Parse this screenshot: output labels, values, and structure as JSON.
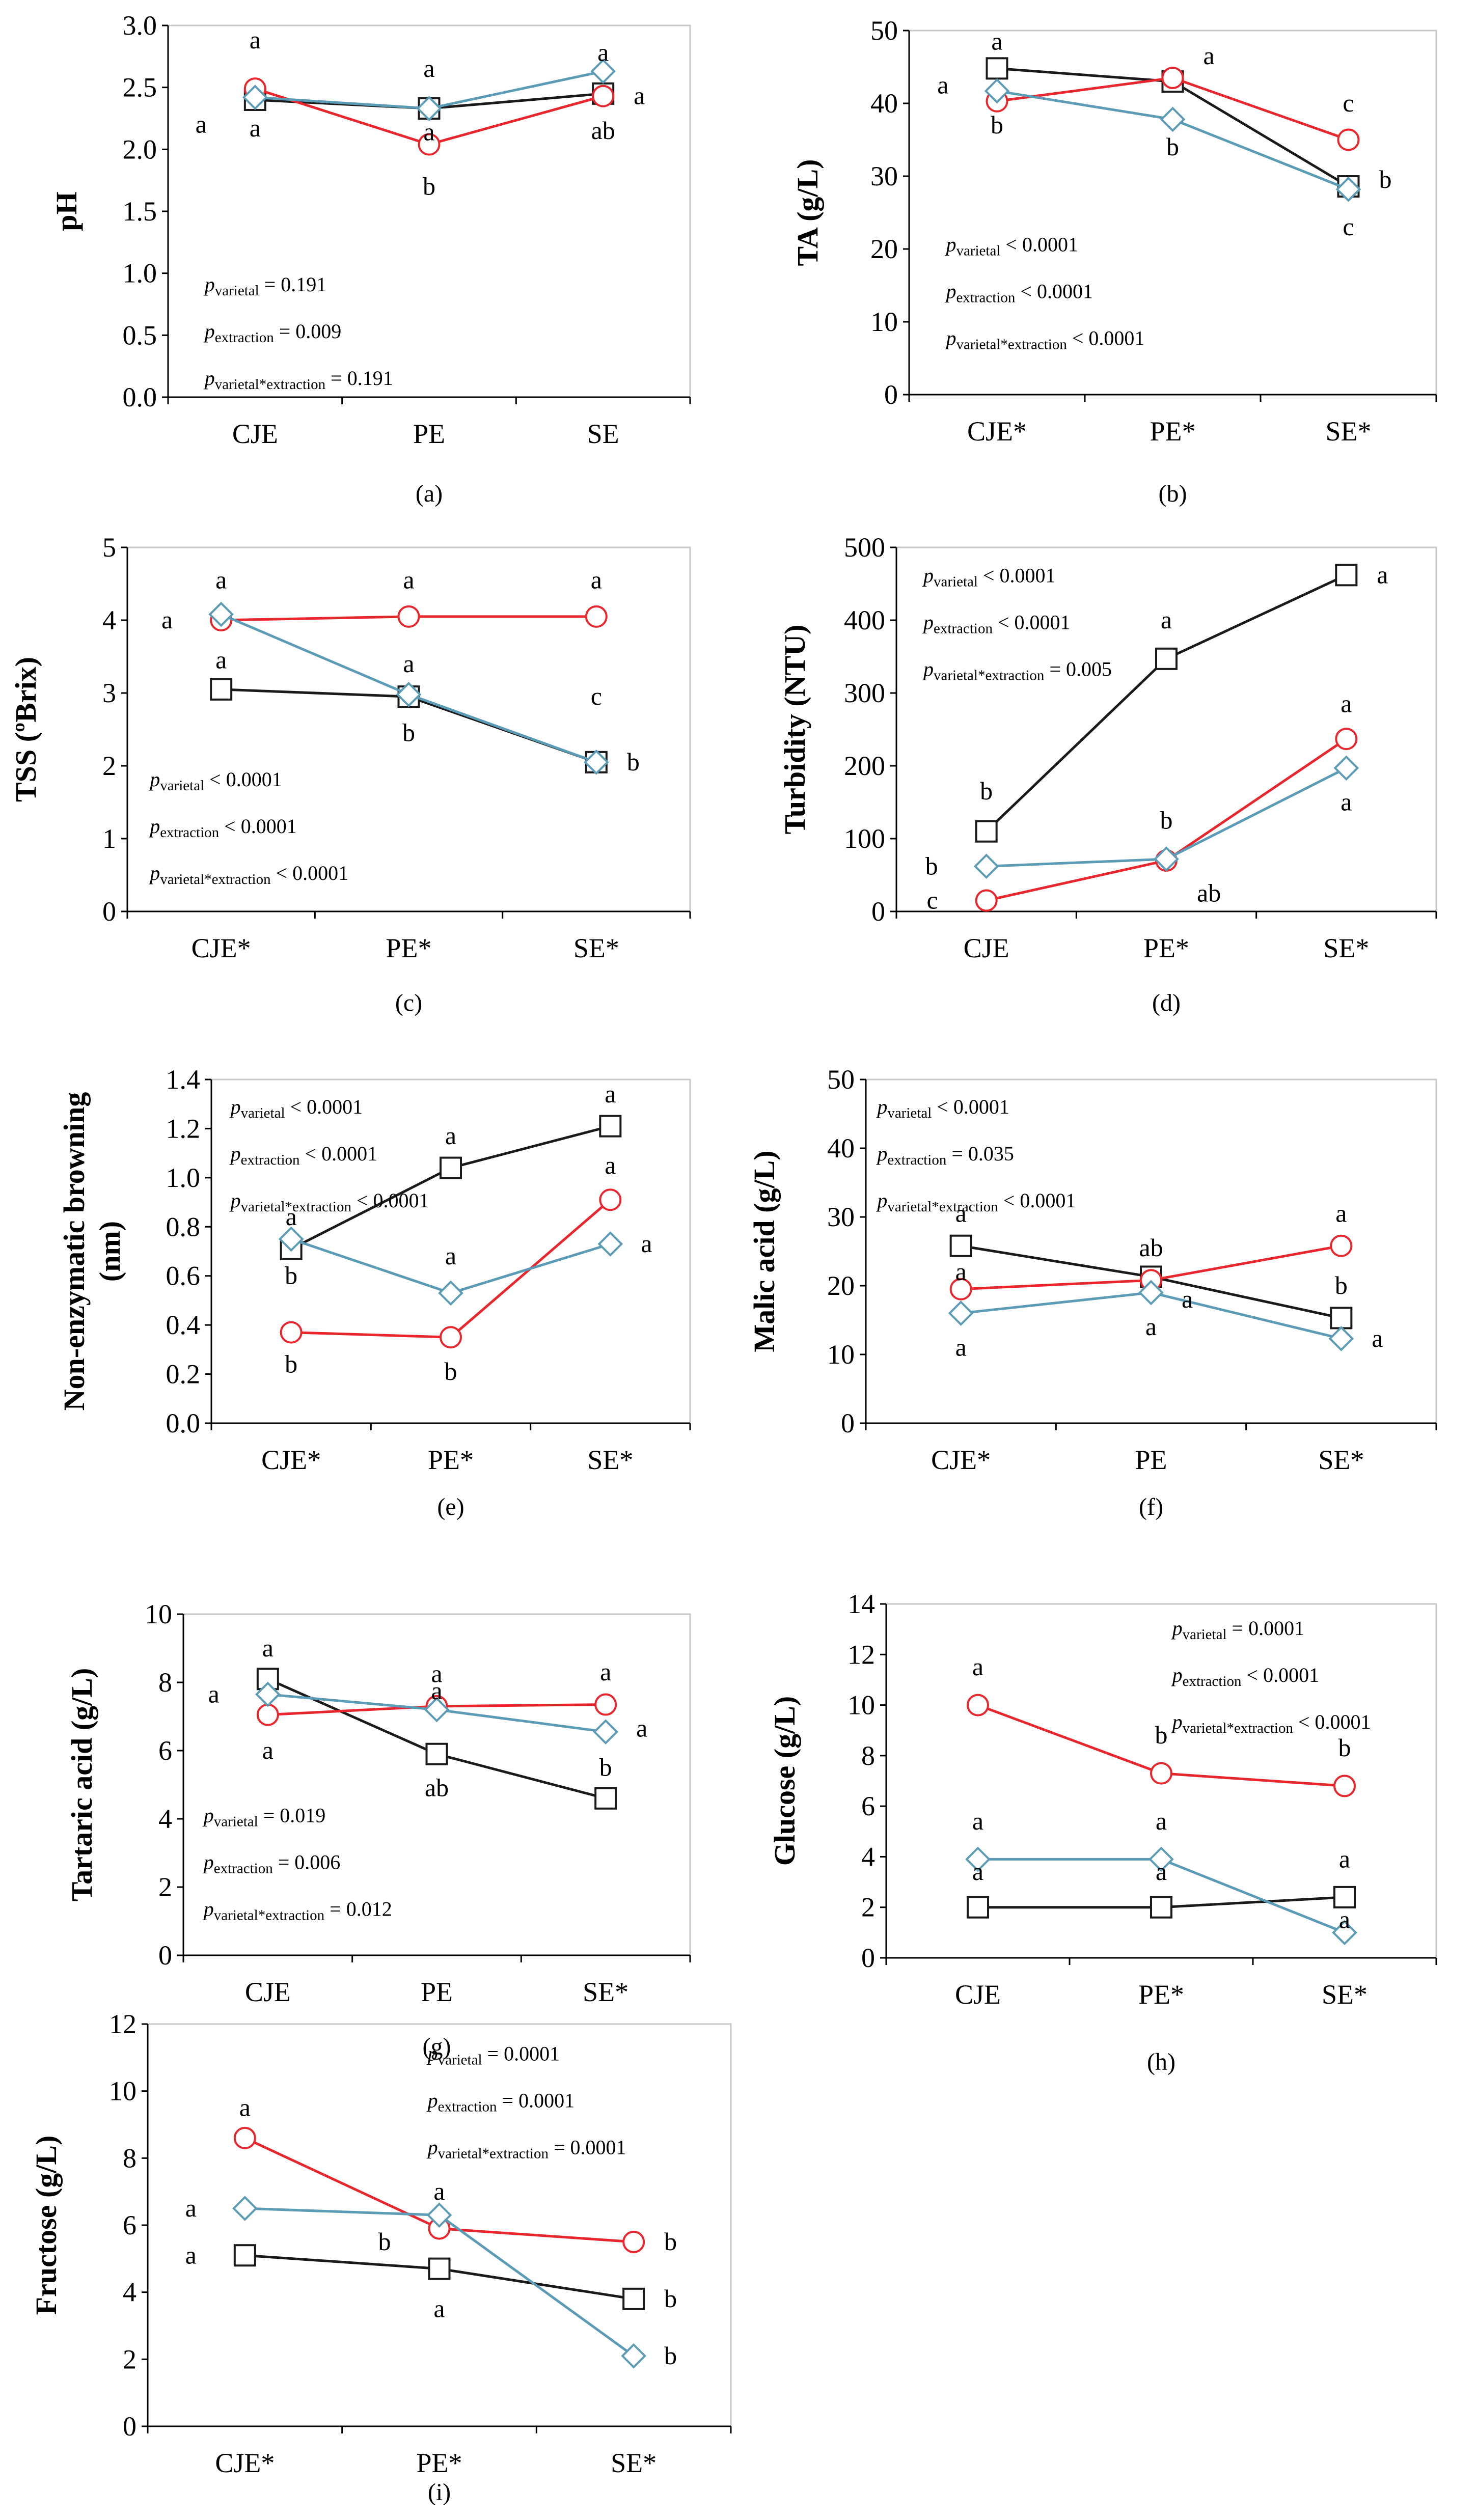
{
  "figure_title": "",
  "legend": [],
  "series_style": {
    "black_square": {
      "color": "#1a1a1a",
      "marker": "square"
    },
    "red_circle": {
      "color": "#e8262d",
      "marker": "circle"
    },
    "blue_diamond": {
      "color": "#5b9bb5",
      "marker": "diamond"
    }
  },
  "chart_data": [
    {
      "id": "a",
      "panel_label": "(a)",
      "type": "line",
      "ylabel": "pH",
      "ylim": [
        0,
        3
      ],
      "yticks": [
        "0.0",
        "0.5",
        "1.0",
        "1.5",
        "2.0",
        "2.5",
        "3.0"
      ],
      "categories": [
        "CJE",
        "PE",
        "SE"
      ],
      "series": [
        {
          "name": "black_square",
          "values": [
            2.4,
            2.33,
            2.45
          ]
        },
        {
          "name": "red_circle",
          "values": [
            2.49,
            2.04,
            2.43
          ]
        },
        {
          "name": "blue_diamond",
          "values": [
            2.42,
            2.33,
            2.63
          ]
        }
      ],
      "stats": [
        {
          "sub": "varietal",
          "text": " = 0.191"
        },
        {
          "sub": "extraction",
          "text": " = 0.009"
        },
        {
          "sub": "varietal*extraction",
          "text": " = 0.191"
        }
      ],
      "letters": [
        {
          "cat": 0,
          "y": 2.88,
          "text": "a"
        },
        {
          "cat": 0,
          "y": 2.2,
          "text": "a",
          "side": "left"
        },
        {
          "cat": 0,
          "y": 2.17,
          "text": "a"
        },
        {
          "cat": 1,
          "y": 2.65,
          "text": "a"
        },
        {
          "cat": 1,
          "y": 2.14,
          "text": "a"
        },
        {
          "cat": 1,
          "y": 1.7,
          "text": "b"
        },
        {
          "cat": 2,
          "y": 2.78,
          "text": "a"
        },
        {
          "cat": 2,
          "y": 2.43,
          "text": "a",
          "side": "right"
        },
        {
          "cat": 2,
          "y": 2.15,
          "text": "ab"
        }
      ]
    },
    {
      "id": "b",
      "panel_label": "(b)",
      "type": "line",
      "ylabel": "TA (g/L)",
      "ylim": [
        0,
        50
      ],
      "yticks": [
        "0",
        "10",
        "20",
        "30",
        "40",
        "50"
      ],
      "categories": [
        "CJE*",
        "PE*",
        "SE*"
      ],
      "series": [
        {
          "name": "black_square",
          "values": [
            44.8,
            43.0,
            28.6
          ]
        },
        {
          "name": "red_circle",
          "values": [
            40.3,
            43.5,
            35.0
          ]
        },
        {
          "name": "blue_diamond",
          "values": [
            41.7,
            37.8,
            28.2
          ]
        }
      ],
      "stats": [
        {
          "sub": "varietal",
          "text": " < 0.0001"
        },
        {
          "sub": "extraction",
          "text": " < 0.0001"
        },
        {
          "sub": "varietal*extraction",
          "text": " < 0.0001"
        }
      ],
      "letters": [
        {
          "cat": 0,
          "y": 48.5,
          "text": "a"
        },
        {
          "cat": 0,
          "y": 42.5,
          "text": "a",
          "side": "left"
        },
        {
          "cat": 0,
          "y": 37.0,
          "text": "b"
        },
        {
          "cat": 1,
          "y": 46.5,
          "text": "a",
          "side": "right"
        },
        {
          "cat": 1,
          "y": 34.0,
          "text": "b"
        },
        {
          "cat": 2,
          "y": 40.0,
          "text": "c"
        },
        {
          "cat": 2,
          "y": 29.5,
          "text": "b",
          "side": "right"
        },
        {
          "cat": 2,
          "y": 23.0,
          "text": "c"
        }
      ]
    },
    {
      "id": "c",
      "panel_label": "(c)",
      "type": "line",
      "ylabel": "TSS (ºBrix)",
      "ylim": [
        0,
        5
      ],
      "yticks": [
        "0",
        "1",
        "2",
        "3",
        "4",
        "5"
      ],
      "categories": [
        "CJE*",
        "PE*",
        "SE*"
      ],
      "series": [
        {
          "name": "black_square",
          "values": [
            3.05,
            2.95,
            2.05
          ]
        },
        {
          "name": "red_circle",
          "values": [
            4.0,
            4.05,
            4.05
          ]
        },
        {
          "name": "blue_diamond",
          "values": [
            4.08,
            2.98,
            2.05
          ]
        }
      ],
      "stats": [
        {
          "sub": "varietal",
          "text": " < 0.0001"
        },
        {
          "sub": "extraction",
          "text": " < 0.0001"
        },
        {
          "sub": "varietal*extraction",
          "text": " < 0.0001"
        }
      ],
      "letters": [
        {
          "cat": 0,
          "y": 4.55,
          "text": "a"
        },
        {
          "cat": 0,
          "y": 4.0,
          "text": "a",
          "side": "left"
        },
        {
          "cat": 0,
          "y": 3.45,
          "text": "a"
        },
        {
          "cat": 1,
          "y": 4.55,
          "text": "a"
        },
        {
          "cat": 1,
          "y": 3.4,
          "text": "a"
        },
        {
          "cat": 1,
          "y": 2.45,
          "text": "b"
        },
        {
          "cat": 2,
          "y": 4.55,
          "text": "a"
        },
        {
          "cat": 2,
          "y": 2.95,
          "text": "c"
        },
        {
          "cat": 2,
          "y": 2.05,
          "text": "b",
          "side": "right"
        }
      ]
    },
    {
      "id": "d",
      "panel_label": "(d)",
      "type": "line",
      "ylabel": "Turbidity (NTU)",
      "ylim": [
        0,
        500
      ],
      "yticks": [
        "0",
        "100",
        "200",
        "300",
        "400",
        "500"
      ],
      "categories": [
        "CJE",
        "PE*",
        "SE*"
      ],
      "series": [
        {
          "name": "black_square",
          "values": [
            110,
            347,
            462
          ]
        },
        {
          "name": "red_circle",
          "values": [
            15,
            70,
            237
          ]
        },
        {
          "name": "blue_diamond",
          "values": [
            62,
            72,
            197
          ]
        }
      ],
      "stats": [
        {
          "sub": "varietal",
          "text": " < 0.0001"
        },
        {
          "sub": "extraction",
          "text": " < 0.0001"
        },
        {
          "sub": "varietal*extraction",
          "text": " = 0.005"
        }
      ],
      "letters": [
        {
          "cat": 0,
          "y": 165,
          "text": "b"
        },
        {
          "cat": 0,
          "y": 62,
          "text": "b",
          "side": "left"
        },
        {
          "cat": 0,
          "y": 15,
          "text": "c",
          "side": "left"
        },
        {
          "cat": 1,
          "y": 400,
          "text": "a"
        },
        {
          "cat": 1,
          "y": 125,
          "text": "b"
        },
        {
          "cat": 1,
          "y": 25,
          "text": "ab",
          "side": "right"
        },
        {
          "cat": 2,
          "y": 462,
          "text": "a",
          "side": "right"
        },
        {
          "cat": 2,
          "y": 285,
          "text": "a"
        },
        {
          "cat": 2,
          "y": 150,
          "text": "a"
        }
      ]
    },
    {
      "id": "e",
      "panel_label": "(e)",
      "type": "line",
      "ylabel": "Non-enzymatic browning (nm)",
      "ylim": [
        0,
        1.4
      ],
      "yticks": [
        "0.0",
        "0.2",
        "0.4",
        "0.6",
        "0.8",
        "1.0",
        "1.2",
        "1.4"
      ],
      "categories": [
        "CJE*",
        "PE*",
        "SE*"
      ],
      "series": [
        {
          "name": "black_square",
          "values": [
            0.71,
            1.04,
            1.21
          ]
        },
        {
          "name": "red_circle",
          "values": [
            0.37,
            0.35,
            0.91
          ]
        },
        {
          "name": "blue_diamond",
          "values": [
            0.75,
            0.53,
            0.73
          ]
        }
      ],
      "stats": [
        {
          "sub": "varietal",
          "text": " < 0.0001"
        },
        {
          "sub": "extraction",
          "text": " < 0.0001"
        },
        {
          "sub": "varietal*extraction",
          "text": " < 0.0001"
        }
      ],
      "letters": [
        {
          "cat": 0,
          "y": 0.84,
          "text": "a"
        },
        {
          "cat": 0,
          "y": 0.6,
          "text": "b"
        },
        {
          "cat": 0,
          "y": 0.24,
          "text": "b"
        },
        {
          "cat": 1,
          "y": 1.17,
          "text": "a"
        },
        {
          "cat": 1,
          "y": 0.68,
          "text": "a"
        },
        {
          "cat": 1,
          "y": 0.21,
          "text": "b"
        },
        {
          "cat": 2,
          "y": 1.34,
          "text": "a"
        },
        {
          "cat": 2,
          "y": 1.05,
          "text": "a"
        },
        {
          "cat": 2,
          "y": 0.73,
          "text": "a",
          "side": "right"
        }
      ]
    },
    {
      "id": "f",
      "panel_label": "(f)",
      "type": "line",
      "ylabel": "Malic acid (g/L)",
      "ylim": [
        0,
        50
      ],
      "yticks": [
        "0",
        "10",
        "20",
        "30",
        "40",
        "50"
      ],
      "categories": [
        "CJE*",
        "PE",
        "SE*"
      ],
      "series": [
        {
          "name": "black_square",
          "values": [
            25.8,
            21.3,
            15.3
          ]
        },
        {
          "name": "red_circle",
          "values": [
            19.5,
            20.8,
            25.8
          ]
        },
        {
          "name": "blue_diamond",
          "values": [
            16.0,
            19.0,
            12.3
          ]
        }
      ],
      "stats": [
        {
          "sub": "varietal",
          "text": " < 0.0001"
        },
        {
          "sub": "extraction",
          "text": " = 0.035"
        },
        {
          "sub": "varietal*extraction",
          "text": " < 0.0001"
        }
      ],
      "letters": [
        {
          "cat": 0,
          "y": 30.5,
          "text": "a"
        },
        {
          "cat": 0,
          "y": 22.0,
          "text": "a"
        },
        {
          "cat": 0,
          "y": 11.0,
          "text": "a"
        },
        {
          "cat": 1,
          "y": 25.5,
          "text": "ab"
        },
        {
          "cat": 1,
          "y": 18.0,
          "text": "a",
          "side": "right"
        },
        {
          "cat": 1,
          "y": 14.0,
          "text": "a"
        },
        {
          "cat": 2,
          "y": 30.5,
          "text": "a"
        },
        {
          "cat": 2,
          "y": 20.0,
          "text": "b"
        },
        {
          "cat": 2,
          "y": 12.3,
          "text": "a",
          "side": "right"
        }
      ]
    },
    {
      "id": "g",
      "panel_label": "(g)",
      "type": "line",
      "ylabel": "Tartaric acid (g/L)",
      "ylim": [
        0,
        10
      ],
      "yticks": [
        "0",
        "2",
        "4",
        "6",
        "8",
        "10"
      ],
      "categories": [
        "CJE",
        "PE",
        "SE*"
      ],
      "series": [
        {
          "name": "black_square",
          "values": [
            8.1,
            5.9,
            4.6
          ]
        },
        {
          "name": "red_circle",
          "values": [
            7.05,
            7.3,
            7.35
          ]
        },
        {
          "name": "blue_diamond",
          "values": [
            7.65,
            7.2,
            6.55
          ]
        }
      ],
      "stats": [
        {
          "sub": "varietal",
          "text": " = 0.019"
        },
        {
          "sub": "extraction",
          "text": " = 0.006"
        },
        {
          "sub": "varietal*extraction",
          "text": " = 0.012"
        }
      ],
      "letters": [
        {
          "cat": 0,
          "y": 9.0,
          "text": "a"
        },
        {
          "cat": 0,
          "y": 7.65,
          "text": "a",
          "side": "left"
        },
        {
          "cat": 0,
          "y": 6.0,
          "text": "a"
        },
        {
          "cat": 1,
          "y": 8.25,
          "text": "a"
        },
        {
          "cat": 1,
          "y": 7.75,
          "text": "a"
        },
        {
          "cat": 1,
          "y": 4.9,
          "text": "ab"
        },
        {
          "cat": 2,
          "y": 8.3,
          "text": "a"
        },
        {
          "cat": 2,
          "y": 6.65,
          "text": "a",
          "side": "right"
        },
        {
          "cat": 2,
          "y": 5.5,
          "text": "b"
        }
      ]
    },
    {
      "id": "h",
      "panel_label": "(h)",
      "type": "line",
      "ylabel": "Glucose (g/L)",
      "ylim": [
        0,
        14
      ],
      "yticks": [
        "0",
        "2",
        "4",
        "6",
        "8",
        "10",
        "12",
        "14"
      ],
      "categories": [
        "CJE",
        "PE*",
        "SE*"
      ],
      "series": [
        {
          "name": "black_square",
          "values": [
            2.0,
            2.0,
            2.4
          ]
        },
        {
          "name": "red_circle",
          "values": [
            10.0,
            7.3,
            6.8
          ]
        },
        {
          "name": "blue_diamond",
          "values": [
            3.9,
            3.9,
            1.0
          ]
        }
      ],
      "stats": [
        {
          "sub": "varietal",
          "text": " = 0.0001"
        },
        {
          "sub": "extraction",
          "text": " < 0.0001"
        },
        {
          "sub": "varietal*extraction",
          "text": " < 0.0001"
        }
      ],
      "letters": [
        {
          "cat": 0,
          "y": 11.5,
          "text": "a"
        },
        {
          "cat": 0,
          "y": 5.4,
          "text": "a"
        },
        {
          "cat": 0,
          "y": 3.4,
          "text": "a"
        },
        {
          "cat": 1,
          "y": 8.8,
          "text": "b"
        },
        {
          "cat": 1,
          "y": 5.4,
          "text": "a"
        },
        {
          "cat": 1,
          "y": 3.4,
          "text": "a"
        },
        {
          "cat": 2,
          "y": 8.3,
          "text": "b"
        },
        {
          "cat": 2,
          "y": 3.9,
          "text": "a"
        },
        {
          "cat": 2,
          "y": 1.5,
          "text": "a"
        }
      ]
    },
    {
      "id": "i",
      "panel_label": "(i)",
      "type": "line",
      "ylabel": "Fructose (g/L)",
      "ylim": [
        0,
        12
      ],
      "yticks": [
        "0",
        "2",
        "4",
        "6",
        "8",
        "10",
        "12"
      ],
      "categories": [
        "CJE*",
        "PE*",
        "SE*"
      ],
      "series": [
        {
          "name": "black_square",
          "values": [
            5.1,
            4.7,
            3.8
          ]
        },
        {
          "name": "red_circle",
          "values": [
            8.6,
            5.9,
            5.5
          ]
        },
        {
          "name": "blue_diamond",
          "values": [
            6.5,
            6.3,
            2.1
          ]
        }
      ],
      "stats": [
        {
          "sub": "varietal",
          "text": " = 0.0001"
        },
        {
          "sub": "extraction",
          "text": " = 0.0001"
        },
        {
          "sub": "varietal*extraction",
          "text": " = 0.0001"
        }
      ],
      "letters": [
        {
          "cat": 0,
          "y": 9.5,
          "text": "a"
        },
        {
          "cat": 0,
          "y": 6.5,
          "text": "a",
          "side": "left"
        },
        {
          "cat": 0,
          "y": 5.1,
          "text": "a",
          "side": "left"
        },
        {
          "cat": 1,
          "y": 7.0,
          "text": "a"
        },
        {
          "cat": 1,
          "y": 5.5,
          "text": "b",
          "side": "left"
        },
        {
          "cat": 1,
          "y": 3.5,
          "text": "a"
        },
        {
          "cat": 2,
          "y": 5.5,
          "text": "b",
          "side": "right"
        },
        {
          "cat": 2,
          "y": 3.8,
          "text": "b",
          "side": "right"
        },
        {
          "cat": 2,
          "y": 2.1,
          "text": "b",
          "side": "right"
        }
      ]
    }
  ]
}
